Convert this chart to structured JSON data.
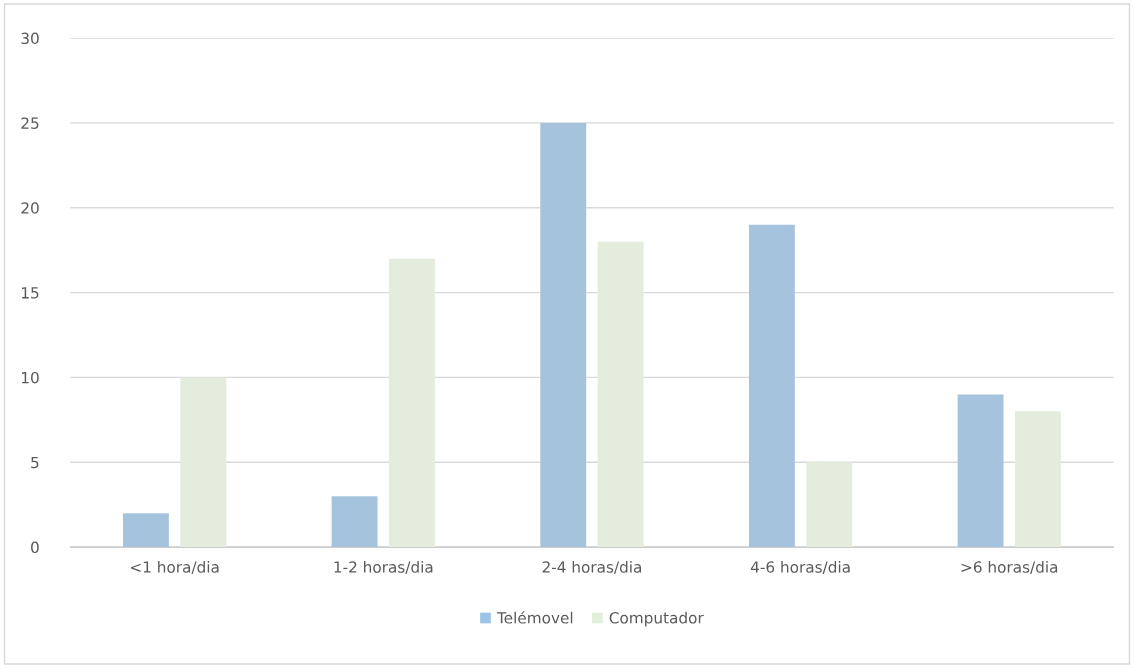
{
  "chart_data": {
    "type": "bar",
    "categories": [
      "<1 hora/dia",
      "1-2 horas/dia",
      "2-4 horas/dia",
      "4-6 horas/dia",
      ">6 horas/dia"
    ],
    "series": [
      {
        "name": "Telémovel",
        "color": "#9dc3e6",
        "values": [
          2,
          3,
          25,
          19,
          9
        ]
      },
      {
        "name": "Computador",
        "color": "#e2efda",
        "values": [
          10,
          17,
          18,
          5,
          8
        ]
      }
    ],
    "ylim": [
      0,
      30
    ],
    "yticks": [
      0,
      5,
      10,
      15,
      20,
      25,
      30
    ],
    "grid": "y",
    "legend": "bottom"
  }
}
